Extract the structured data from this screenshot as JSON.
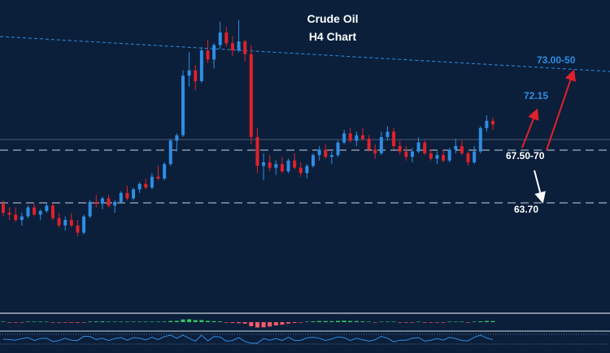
{
  "title": {
    "line1": "Crude Oil",
    "line2": "H4 Chart"
  },
  "colors": {
    "background": "#0b1f3a",
    "bull": "#2f8de4",
    "bear": "#e0212b",
    "level_line": "#c9d2de",
    "trendline": "#2f8de4",
    "label_blue": "#2f8de4",
    "label_white": "#ffffff",
    "arrow_red": "#e0212b",
    "arrow_white": "#ffffff",
    "osc_green": "#36c463",
    "osc_red": "#ff5a6a"
  },
  "chart_data": {
    "type": "candlestick",
    "title": "Crude Oil H4 Chart",
    "price_range_approx": [
      61.0,
      74.5
    ],
    "candles_ohlc_approx": [
      [
        64.1,
        64.3,
        63.4,
        63.6
      ],
      [
        63.6,
        63.9,
        63.2,
        63.5
      ],
      [
        63.5,
        63.9,
        63.1,
        63.2
      ],
      [
        63.2,
        63.6,
        62.9,
        63.4
      ],
      [
        63.4,
        64.0,
        63.3,
        63.9
      ],
      [
        63.9,
        64.1,
        63.4,
        63.5
      ],
      [
        63.5,
        63.8,
        63.2,
        63.7
      ],
      [
        63.7,
        64.2,
        63.6,
        64.0
      ],
      [
        64.0,
        64.1,
        63.2,
        63.3
      ],
      [
        63.3,
        63.6,
        62.8,
        62.9
      ],
      [
        62.9,
        63.4,
        62.6,
        63.2
      ],
      [
        63.2,
        63.6,
        62.8,
        62.9
      ],
      [
        62.9,
        63.2,
        62.3,
        62.5
      ],
      [
        62.5,
        63.5,
        62.4,
        63.4
      ],
      [
        63.4,
        64.3,
        63.3,
        64.2
      ],
      [
        64.2,
        64.6,
        63.9,
        64.1
      ],
      [
        64.1,
        64.5,
        63.8,
        64.4
      ],
      [
        64.4,
        64.6,
        63.9,
        64.0
      ],
      [
        64.0,
        64.3,
        63.6,
        64.2
      ],
      [
        64.2,
        64.8,
        64.1,
        64.7
      ],
      [
        64.7,
        65.1,
        64.3,
        64.4
      ],
      [
        64.4,
        65.0,
        64.3,
        64.9
      ],
      [
        64.9,
        65.3,
        64.7,
        65.2
      ],
      [
        65.2,
        65.5,
        64.9,
        65.0
      ],
      [
        65.0,
        65.8,
        64.9,
        65.6
      ],
      [
        65.6,
        66.2,
        65.4,
        65.5
      ],
      [
        65.5,
        66.4,
        65.4,
        66.3
      ],
      [
        66.3,
        67.7,
        66.2,
        67.6
      ],
      [
        67.6,
        68.0,
        67.0,
        67.9
      ],
      [
        67.9,
        71.5,
        67.8,
        71.2
      ],
      [
        71.2,
        72.5,
        70.6,
        71.5
      ],
      [
        71.5,
        71.8,
        70.4,
        70.9
      ],
      [
        70.9,
        72.8,
        70.8,
        72.6
      ],
      [
        72.6,
        73.2,
        71.9,
        72.1
      ],
      [
        72.1,
        73.0,
        71.6,
        72.9
      ],
      [
        72.9,
        74.2,
        72.7,
        73.6
      ],
      [
        73.6,
        73.9,
        72.8,
        73.0
      ],
      [
        73.0,
        73.4,
        72.3,
        72.6
      ],
      [
        72.6,
        74.3,
        72.5,
        73.1
      ],
      [
        73.1,
        73.2,
        72.0,
        72.4
      ],
      [
        72.4,
        72.9,
        67.4,
        67.8
      ],
      [
        67.8,
        68.3,
        65.8,
        66.2
      ],
      [
        66.2,
        66.9,
        65.4,
        66.4
      ],
      [
        66.4,
        66.8,
        65.9,
        66.1
      ],
      [
        66.1,
        66.5,
        65.7,
        66.3
      ],
      [
        66.3,
        66.7,
        65.8,
        65.9
      ],
      [
        65.9,
        66.6,
        65.8,
        66.5
      ],
      [
        66.5,
        66.9,
        66.0,
        66.1
      ],
      [
        66.1,
        66.4,
        65.6,
        65.8
      ],
      [
        65.8,
        66.3,
        65.5,
        66.2
      ],
      [
        66.2,
        66.9,
        66.1,
        66.8
      ],
      [
        66.8,
        67.3,
        66.5,
        67.1
      ],
      [
        67.1,
        67.4,
        66.6,
        66.7
      ],
      [
        66.7,
        67.0,
        66.3,
        66.8
      ],
      [
        66.8,
        67.6,
        66.7,
        67.5
      ],
      [
        67.5,
        68.2,
        67.4,
        68.0
      ],
      [
        68.0,
        68.3,
        67.5,
        67.6
      ],
      [
        67.6,
        68.1,
        67.3,
        67.9
      ],
      [
        67.9,
        68.3,
        67.6,
        67.7
      ],
      [
        67.7,
        67.9,
        67.0,
        67.1
      ],
      [
        67.1,
        67.4,
        66.6,
        66.9
      ],
      [
        66.9,
        68.1,
        66.8,
        67.8
      ],
      [
        67.8,
        68.4,
        67.6,
        68.1
      ],
      [
        68.1,
        68.3,
        67.1,
        67.3
      ],
      [
        67.3,
        67.6,
        66.8,
        67.0
      ],
      [
        67.0,
        67.3,
        66.5,
        66.7
      ],
      [
        66.7,
        67.2,
        66.4,
        67.0
      ],
      [
        67.0,
        67.8,
        66.9,
        67.5
      ],
      [
        67.5,
        67.6,
        66.8,
        66.9
      ],
      [
        66.9,
        67.1,
        66.5,
        66.6
      ],
      [
        66.6,
        67.0,
        66.3,
        66.8
      ],
      [
        66.8,
        67.1,
        66.4,
        66.5
      ],
      [
        66.5,
        67.2,
        66.4,
        67.1
      ],
      [
        67.1,
        67.7,
        66.9,
        67.3
      ],
      [
        67.3,
        67.6,
        66.8,
        66.9
      ],
      [
        66.9,
        67.0,
        66.2,
        66.4
      ],
      [
        66.4,
        67.3,
        66.3,
        67.0
      ],
      [
        67.0,
        68.4,
        66.9,
        68.3
      ],
      [
        68.3,
        69.0,
        68.1,
        68.7
      ],
      [
        68.7,
        68.9,
        68.2,
        68.5
      ]
    ],
    "levels": [
      {
        "label": "67.50-70",
        "value": 67.5
      },
      {
        "label": "63.70",
        "value": 63.7
      }
    ],
    "resistance_trendline_from_to_approx": [
      74.6,
      72.2
    ],
    "reference_line_approx": 68.3,
    "targets": [
      {
        "label": "72.15",
        "value": 72.15
      },
      {
        "label": "73.00-50",
        "value": 73.0
      }
    ]
  }
}
